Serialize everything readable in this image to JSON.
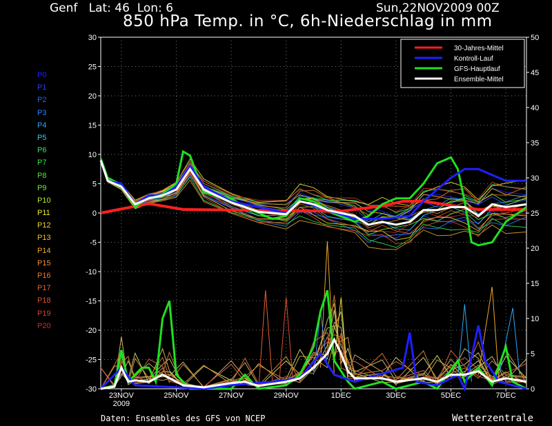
{
  "header": {
    "location": "Genf   Lat: 46  Lon: 6",
    "run": "Sun,22NOV2009 00Z",
    "title": "850 hPa Temp. in °C, 6h-Niederschlag in mm"
  },
  "footer": {
    "source": "Daten: Ensembles des GFS von NCEP",
    "brand": "Wetterzentrale"
  },
  "members": [
    {
      "label": "P0",
      "color": "#2020ff"
    },
    {
      "label": "P1",
      "color": "#2a3cff"
    },
    {
      "label": "P2",
      "color": "#2f5cff"
    },
    {
      "label": "P3",
      "color": "#2f84ff"
    },
    {
      "label": "P4",
      "color": "#2fa8ff"
    },
    {
      "label": "P5",
      "color": "#2fd0e8"
    },
    {
      "label": "P6",
      "color": "#30e870"
    },
    {
      "label": "P7",
      "color": "#30e850"
    },
    {
      "label": "P8",
      "color": "#50ec30"
    },
    {
      "label": "P9",
      "color": "#78f030"
    },
    {
      "label": "P10",
      "color": "#b4f030"
    },
    {
      "label": "P11",
      "color": "#f0f030"
    },
    {
      "label": "P12",
      "color": "#f0d830"
    },
    {
      "label": "P13",
      "color": "#f0c030"
    },
    {
      "label": "P14",
      "color": "#f0a830"
    },
    {
      "label": "P15",
      "color": "#f09030"
    },
    {
      "label": "P16",
      "color": "#f07830"
    },
    {
      "label": "P17",
      "color": "#e86030"
    },
    {
      "label": "P18",
      "color": "#e05030"
    },
    {
      "label": "P19",
      "color": "#d84030"
    },
    {
      "label": "P20",
      "color": "#c83030"
    }
  ],
  "chart_data": {
    "type": "line",
    "x_unit": "date",
    "x_ticks": [
      {
        "date": "2009-11-23",
        "label": "23NOV",
        "sub": "2009"
      },
      {
        "date": "2009-11-25",
        "label": "25NOV",
        "sub": ""
      },
      {
        "date": "2009-11-27",
        "label": "27NOV",
        "sub": ""
      },
      {
        "date": "2009-11-29",
        "label": "29NOV",
        "sub": ""
      },
      {
        "date": "2009-12-01",
        "label": "1DEC",
        "sub": ""
      },
      {
        "date": "2009-12-03",
        "label": "3DEC",
        "sub": ""
      },
      {
        "date": "2009-12-05",
        "label": "5DEC",
        "sub": ""
      },
      {
        "date": "2009-12-07",
        "label": "7DEC",
        "sub": ""
      }
    ],
    "xlim": [
      "2009-11-22T06:00",
      "2009-12-07T18:00"
    ],
    "y_left": {
      "unit": "°C",
      "ticks": [
        30,
        25,
        20,
        15,
        10,
        5,
        0,
        -5,
        -10,
        -15,
        -20,
        -25,
        -30
      ],
      "ylim": [
        -30,
        30
      ]
    },
    "y_right": {
      "unit": "mm",
      "ticks": [
        50,
        45,
        40,
        35,
        30,
        25,
        20,
        15,
        10,
        5,
        0
      ],
      "ylim": [
        0,
        50
      ]
    },
    "grid": true,
    "legend_position": "top-right",
    "legend": [
      {
        "name": "30-Jahres-Mittel",
        "color": "#ff2020"
      },
      {
        "name": "Kontroll-Lauf",
        "color": "#2020ff"
      },
      {
        "name": "GFS-Hauptlauf",
        "color": "#20e020"
      },
      {
        "name": "Ensemble-Mittel",
        "color": "#ffffff"
      }
    ],
    "temperature_series": [
      {
        "name": "30-Jahres-Mittel",
        "color": "#ff2020",
        "width": 4,
        "points": [
          [
            "2009-11-22T06",
            0
          ],
          [
            "2009-11-24T00",
            1.6
          ],
          [
            "2009-11-25T06",
            0.6
          ],
          [
            "2009-11-29T00",
            0.4
          ],
          [
            "2009-12-01T00",
            0.3
          ],
          [
            "2009-12-02T12",
            1.2
          ],
          [
            "2009-12-03T06",
            2.0
          ],
          [
            "2009-12-04T00",
            2.0
          ],
          [
            "2009-12-06T00",
            0.6
          ],
          [
            "2009-12-07T18",
            0.6
          ]
        ]
      },
      {
        "name": "GFS-Hauptlauf",
        "color": "#20e020",
        "width": 3,
        "points": [
          [
            "2009-11-22T06",
            9.3
          ],
          [
            "2009-11-22T12",
            6
          ],
          [
            "2009-11-23T00",
            4.8
          ],
          [
            "2009-11-23T12",
            1
          ],
          [
            "2009-11-24T00",
            2.8
          ],
          [
            "2009-11-24T12",
            3.2
          ],
          [
            "2009-11-25T00",
            5
          ],
          [
            "2009-11-25T06",
            10.5
          ],
          [
            "2009-11-25T12",
            9.8
          ],
          [
            "2009-11-26T00",
            3.5
          ],
          [
            "2009-11-27T00",
            2.5
          ],
          [
            "2009-11-27T12",
            1
          ],
          [
            "2009-11-28T00",
            0
          ],
          [
            "2009-11-28T12",
            -1
          ],
          [
            "2009-11-29T00",
            -0.5
          ],
          [
            "2009-11-29T12",
            2.5
          ],
          [
            "2009-11-30T00",
            2
          ],
          [
            "2009-11-30T12",
            0.5
          ],
          [
            "2009-12-01T00",
            -0.5
          ],
          [
            "2009-12-01T12",
            -1.5
          ],
          [
            "2009-12-02T00",
            -0.5
          ],
          [
            "2009-12-02T12",
            1.5
          ],
          [
            "2009-12-03T00",
            2.5
          ],
          [
            "2009-12-03T12",
            2.5
          ],
          [
            "2009-12-04T00",
            5
          ],
          [
            "2009-12-04T12",
            8.5
          ],
          [
            "2009-12-05T00",
            9.5
          ],
          [
            "2009-12-05T06",
            7.5
          ],
          [
            "2009-12-05T12",
            2
          ],
          [
            "2009-12-05T18",
            -5
          ],
          [
            "2009-12-06T00",
            -5.5
          ],
          [
            "2009-12-06T12",
            -5
          ],
          [
            "2009-12-07T00",
            -1.5
          ],
          [
            "2009-12-07T18",
            1
          ]
        ]
      },
      {
        "name": "Kontroll-Lauf",
        "color": "#2020ff",
        "width": 3,
        "points": [
          [
            "2009-11-22T06",
            9
          ],
          [
            "2009-11-22T12",
            5.5
          ],
          [
            "2009-11-23T00",
            5
          ],
          [
            "2009-11-23T12",
            1.5
          ],
          [
            "2009-11-24T00",
            3
          ],
          [
            "2009-11-24T12",
            3
          ],
          [
            "2009-11-25T00",
            4.5
          ],
          [
            "2009-11-25T12",
            8
          ],
          [
            "2009-11-26T00",
            4.5
          ],
          [
            "2009-11-27T00",
            2
          ],
          [
            "2009-11-28T00",
            1
          ],
          [
            "2009-11-29T00",
            0
          ],
          [
            "2009-11-29T12",
            2
          ],
          [
            "2009-11-30T12",
            0.5
          ],
          [
            "2009-12-01T12",
            -1
          ],
          [
            "2009-12-02T12",
            -1
          ],
          [
            "2009-12-03T12",
            -0.5
          ],
          [
            "2009-12-04T00",
            2
          ],
          [
            "2009-12-04T12",
            4
          ],
          [
            "2009-12-05T00",
            6
          ],
          [
            "2009-12-05T12",
            7.5
          ],
          [
            "2009-12-06T00",
            7.5
          ],
          [
            "2009-12-06T12",
            6.5
          ],
          [
            "2009-12-07T00",
            5.5
          ],
          [
            "2009-12-07T18",
            5.5
          ]
        ]
      },
      {
        "name": "Ensemble-Mittel",
        "color": "#ffffff",
        "width": 3,
        "points": [
          [
            "2009-11-22T06",
            9
          ],
          [
            "2009-11-22T12",
            5.5
          ],
          [
            "2009-11-23T00",
            4.5
          ],
          [
            "2009-11-23T12",
            1.5
          ],
          [
            "2009-11-24T00",
            2.5
          ],
          [
            "2009-11-24T12",
            3
          ],
          [
            "2009-11-25T00",
            4
          ],
          [
            "2009-11-25T12",
            7.5
          ],
          [
            "2009-11-26T00",
            4
          ],
          [
            "2009-11-27T00",
            1.8
          ],
          [
            "2009-11-28T00",
            0.2
          ],
          [
            "2009-11-29T00",
            -0.2
          ],
          [
            "2009-11-29T12",
            2
          ],
          [
            "2009-11-30T00",
            1.5
          ],
          [
            "2009-11-30T12",
            0.5
          ],
          [
            "2009-12-01T12",
            -0.5
          ],
          [
            "2009-12-02T00",
            -2
          ],
          [
            "2009-12-02T12",
            -1.5
          ],
          [
            "2009-12-03T00",
            -2
          ],
          [
            "2009-12-03T12",
            -1.5
          ],
          [
            "2009-12-04T00",
            0.5
          ],
          [
            "2009-12-04T12",
            0.5
          ],
          [
            "2009-12-05T00",
            1
          ],
          [
            "2009-12-05T12",
            1
          ],
          [
            "2009-12-06T00",
            -0.5
          ],
          [
            "2009-12-06T12",
            1.5
          ],
          [
            "2009-12-07T00",
            1
          ],
          [
            "2009-12-07T18",
            1.5
          ]
        ]
      }
    ],
    "ensemble_spread": {
      "center_ref": "Ensemble-Mittel",
      "member_offsets_c": [
        2.0,
        -1.8,
        1.2,
        -2.5,
        0.8,
        -0.6,
        2.8,
        -3.2,
        1.5,
        -1.1,
        0.4,
        3.5,
        -2.0,
        1.9,
        -4.0,
        0.2,
        2.4,
        -1.4,
        -2.8,
        3.0,
        -0.9
      ]
    },
    "precipitation_series": [
      {
        "name": "GFS-Hauptlauf",
        "color": "#20e020",
        "width": 3,
        "points": [
          [
            "2009-11-22T06",
            0
          ],
          [
            "2009-11-22T18",
            0.5
          ],
          [
            "2009-11-23T00",
            5.5
          ],
          [
            "2009-11-23T06",
            1
          ],
          [
            "2009-11-23T18",
            3
          ],
          [
            "2009-11-24T00",
            3
          ],
          [
            "2009-11-24T06",
            1
          ],
          [
            "2009-11-24T12",
            10
          ],
          [
            "2009-11-24T18",
            12.5
          ],
          [
            "2009-11-25T00",
            2
          ],
          [
            "2009-11-25T12",
            0
          ],
          [
            "2009-11-27T00",
            0
          ],
          [
            "2009-11-27T12",
            2
          ],
          [
            "2009-11-28T00",
            0
          ],
          [
            "2009-11-29T00",
            0.5
          ],
          [
            "2009-11-29T12",
            2
          ],
          [
            "2009-11-30T00",
            6
          ],
          [
            "2009-11-30T06",
            11
          ],
          [
            "2009-11-30T12",
            14
          ],
          [
            "2009-11-30T18",
            4
          ],
          [
            "2009-12-01T06",
            1
          ],
          [
            "2009-12-01T12",
            0
          ],
          [
            "2009-12-02T12",
            1
          ],
          [
            "2009-12-03T00",
            0
          ],
          [
            "2009-12-04T00",
            1
          ],
          [
            "2009-12-04T12",
            0
          ],
          [
            "2009-12-05T06",
            4
          ],
          [
            "2009-12-05T12",
            1
          ],
          [
            "2009-12-06T00",
            3
          ],
          [
            "2009-12-06T12",
            0.5
          ],
          [
            "2009-12-07T00",
            6
          ],
          [
            "2009-12-07T06",
            1
          ],
          [
            "2009-12-07T18",
            0
          ]
        ]
      },
      {
        "name": "Kontroll-Lauf",
        "color": "#2020ff",
        "width": 3,
        "points": [
          [
            "2009-11-22T06",
            0
          ],
          [
            "2009-11-23T00",
            3
          ],
          [
            "2009-11-23T12",
            0.5
          ],
          [
            "2009-11-26T00",
            0
          ],
          [
            "2009-11-27T00",
            0.5
          ],
          [
            "2009-11-28T12",
            1
          ],
          [
            "2009-11-29T12",
            1.5
          ],
          [
            "2009-11-30T06",
            5
          ],
          [
            "2009-11-30T18",
            2
          ],
          [
            "2009-12-01T12",
            1
          ],
          [
            "2009-12-03T06",
            3
          ],
          [
            "2009-12-03T12",
            8
          ],
          [
            "2009-12-03T18",
            1
          ],
          [
            "2009-12-04T12",
            0.5
          ],
          [
            "2009-12-05T06",
            2
          ],
          [
            "2009-12-05T12",
            0
          ],
          [
            "2009-12-06T00",
            9
          ],
          [
            "2009-12-06T06",
            4
          ],
          [
            "2009-12-06T18",
            1
          ],
          [
            "2009-12-07T18",
            0
          ]
        ]
      },
      {
        "name": "Ensemble-Mittel",
        "color": "#ffffff",
        "width": 3,
        "points": [
          [
            "2009-11-22T06",
            0
          ],
          [
            "2009-11-22T18",
            0.3
          ],
          [
            "2009-11-23T00",
            3
          ],
          [
            "2009-11-23T06",
            1
          ],
          [
            "2009-11-23T12",
            1.2
          ],
          [
            "2009-11-24T00",
            1
          ],
          [
            "2009-11-24T12",
            2
          ],
          [
            "2009-11-24T18",
            1.5
          ],
          [
            "2009-11-25T06",
            0.5
          ],
          [
            "2009-11-26T00",
            0.2
          ],
          [
            "2009-11-27T00",
            0.8
          ],
          [
            "2009-11-27T12",
            1
          ],
          [
            "2009-11-28T00",
            0.4
          ],
          [
            "2009-11-29T00",
            1
          ],
          [
            "2009-11-29T12",
            1.5
          ],
          [
            "2009-11-30T00",
            3
          ],
          [
            "2009-11-30T12",
            5
          ],
          [
            "2009-11-30T18",
            7
          ],
          [
            "2009-12-01T00",
            5
          ],
          [
            "2009-12-01T06",
            2.5
          ],
          [
            "2009-12-01T12",
            1.5
          ],
          [
            "2009-12-02T12",
            1.5
          ],
          [
            "2009-12-03T00",
            1
          ],
          [
            "2009-12-04T00",
            1.5
          ],
          [
            "2009-12-04T12",
            1
          ],
          [
            "2009-12-05T00",
            2
          ],
          [
            "2009-12-05T12",
            2
          ],
          [
            "2009-12-06T00",
            2.5
          ],
          [
            "2009-12-06T12",
            1
          ],
          [
            "2009-12-07T00",
            1.5
          ],
          [
            "2009-12-07T18",
            1
          ]
        ]
      }
    ],
    "ensemble_precip_peaks": [
      {
        "member": 17,
        "points": [
          [
            "2009-11-28T00",
            0
          ],
          [
            "2009-11-28T06",
            14
          ],
          [
            "2009-11-28T12",
            1
          ]
        ]
      },
      {
        "member": 14,
        "points": [
          [
            "2009-11-30T06",
            3
          ],
          [
            "2009-11-30T12",
            21
          ],
          [
            "2009-11-30T18",
            2
          ]
        ]
      },
      {
        "member": 12,
        "points": [
          [
            "2009-11-30T18",
            4
          ],
          [
            "2009-12-01T00",
            13
          ],
          [
            "2009-12-01T06",
            1
          ]
        ]
      },
      {
        "member": 4,
        "points": [
          [
            "2009-12-05T06",
            2
          ],
          [
            "2009-12-05T12",
            12
          ],
          [
            "2009-12-05T18",
            1
          ]
        ]
      },
      {
        "member": 14,
        "points": [
          [
            "2009-12-06T00",
            2
          ],
          [
            "2009-12-06T12",
            14.5
          ],
          [
            "2009-12-06T18",
            1
          ]
        ]
      },
      {
        "member": 4,
        "points": [
          [
            "2009-12-06T18",
            2
          ],
          [
            "2009-12-07T06",
            11.5
          ],
          [
            "2009-12-07T12",
            2
          ]
        ]
      },
      {
        "member": 3,
        "points": [
          [
            "2009-11-30T00",
            2
          ],
          [
            "2009-11-30T06",
            11
          ],
          [
            "2009-11-30T12",
            3
          ]
        ]
      },
      {
        "member": 18,
        "points": [
          [
            "2009-11-28T18",
            1
          ],
          [
            "2009-11-29T00",
            13
          ],
          [
            "2009-11-29T06",
            1
          ]
        ]
      }
    ]
  }
}
